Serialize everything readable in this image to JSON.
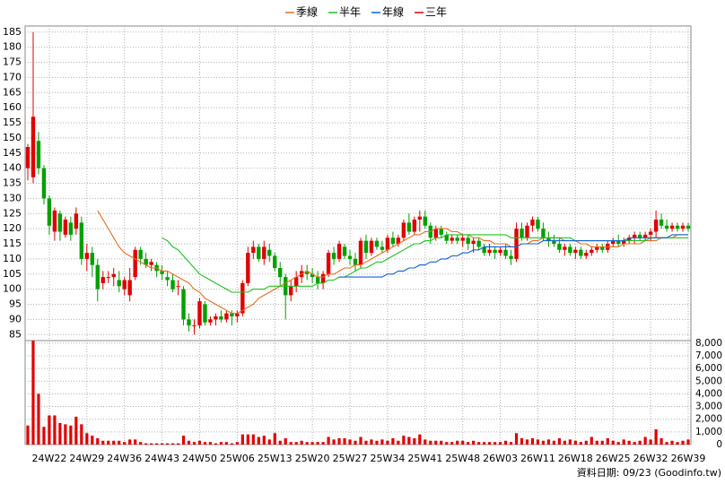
{
  "chart_data": {
    "type": "candlestick",
    "categories": [
      null,
      null,
      null,
      null,
      "24W22",
      null,
      null,
      null,
      null,
      null,
      null,
      "24W29",
      null,
      null,
      null,
      null,
      null,
      null,
      "24W36",
      null,
      null,
      null,
      null,
      null,
      null,
      "24W43",
      null,
      null,
      null,
      null,
      null,
      null,
      "24W50",
      null,
      null,
      null,
      null,
      null,
      null,
      "25W06",
      null,
      null,
      null,
      null,
      null,
      null,
      "25W13",
      null,
      null,
      null,
      null,
      null,
      null,
      "25W20",
      null,
      null,
      null,
      null,
      null,
      null,
      "25W27",
      null,
      null,
      null,
      null,
      null,
      null,
      "25W34",
      null,
      null,
      null,
      null,
      null,
      null,
      "25W41",
      null,
      null,
      null,
      null,
      null,
      null,
      "25W48",
      null,
      null,
      null,
      null,
      null,
      null,
      "26W03",
      null,
      null,
      null,
      null,
      null,
      null,
      "26W11",
      null,
      null,
      null,
      null,
      null,
      null,
      "26W18",
      null,
      null,
      null,
      null,
      null,
      null,
      "26W25",
      null,
      null,
      null,
      null,
      null,
      null,
      "26W32",
      null,
      null,
      null,
      null,
      null,
      null,
      "26W39"
    ],
    "open": [
      140,
      137,
      149,
      140,
      130,
      119,
      125,
      118,
      122,
      120,
      122,
      110,
      112,
      108,
      102,
      104,
      104,
      103,
      100,
      98,
      104,
      113,
      110,
      108,
      108,
      106,
      104,
      103,
      101,
      100,
      90,
      88,
      88,
      95,
      89,
      90,
      91,
      90,
      92,
      91,
      92,
      102,
      112,
      114,
      110,
      113,
      111,
      107,
      104,
      98,
      101,
      104,
      106,
      105,
      104,
      102,
      105,
      112,
      110,
      114,
      111,
      110,
      108,
      116,
      112,
      116,
      114,
      113,
      117,
      115,
      117,
      122,
      119,
      123,
      124,
      121,
      117,
      120,
      118,
      116,
      117,
      116,
      117,
      115,
      116,
      114,
      112,
      113,
      112,
      113,
      111,
      110,
      120,
      117,
      121,
      123,
      120,
      117,
      116,
      115,
      113,
      114,
      112,
      113,
      111,
      112,
      113,
      114,
      113,
      115,
      116,
      115,
      116,
      117,
      118,
      117,
      118,
      119,
      123,
      121,
      120,
      121,
      120,
      121
    ],
    "high": [
      148,
      185,
      152,
      141,
      131,
      127,
      126,
      124,
      124,
      127,
      124,
      115,
      114,
      110,
      106,
      106,
      107,
      106,
      104,
      107,
      114,
      114,
      112,
      110,
      109,
      108,
      106,
      105,
      103,
      101,
      92,
      90,
      97,
      96,
      91,
      92,
      93,
      93,
      93,
      93,
      103,
      114,
      116,
      115,
      116,
      115,
      112,
      109,
      105,
      103,
      106,
      108,
      108,
      107,
      106,
      106,
      113,
      114,
      116,
      115,
      113,
      112,
      117,
      118,
      117,
      117,
      116,
      118,
      119,
      118,
      123,
      125,
      124,
      126,
      126,
      122,
      121,
      121,
      119,
      118,
      118,
      118,
      118,
      117,
      117,
      115,
      115,
      114,
      114,
      115,
      113,
      122,
      122,
      122,
      124,
      124,
      122,
      119,
      118,
      117,
      115,
      115,
      114,
      114,
      113,
      114,
      115,
      115,
      116,
      117,
      118,
      117,
      118,
      119,
      119,
      119,
      120,
      126,
      125,
      123,
      122,
      122,
      122,
      122
    ],
    "low": [
      136,
      135,
      138,
      128,
      118,
      116,
      116,
      117,
      116,
      118,
      108,
      106,
      104,
      96,
      100,
      102,
      101,
      99,
      98,
      96,
      103,
      108,
      107,
      106,
      104,
      103,
      101,
      99,
      98,
      88,
      86,
      85,
      87,
      88,
      88,
      88,
      89,
      89,
      88,
      89,
      91,
      101,
      110,
      109,
      108,
      109,
      106,
      101,
      90,
      96,
      99,
      102,
      103,
      102,
      100,
      100,
      104,
      108,
      109,
      110,
      108,
      106,
      107,
      110,
      111,
      113,
      112,
      112,
      114,
      114,
      116,
      118,
      118,
      119,
      120,
      115,
      116,
      117,
      115,
      115,
      115,
      114,
      113,
      112,
      113,
      111,
      111,
      110,
      111,
      110,
      108,
      109,
      116,
      116,
      119,
      119,
      116,
      114,
      114,
      112,
      111,
      111,
      110,
      110,
      110,
      111,
      112,
      112,
      112,
      114,
      114,
      114,
      115,
      115,
      116,
      116,
      116,
      117,
      120,
      119,
      119,
      119,
      119,
      119
    ],
    "close": [
      147,
      157,
      140,
      130,
      121,
      126,
      119,
      123,
      118,
      125,
      110,
      112,
      108,
      100,
      104,
      104,
      105,
      101,
      103,
      103,
      113,
      110,
      108,
      109,
      106,
      105,
      103,
      100,
      101,
      90,
      88,
      88,
      96,
      89,
      90,
      91,
      90,
      92,
      91,
      92,
      102,
      112,
      114,
      110,
      114,
      111,
      107,
      104,
      98,
      101,
      104,
      106,
      105,
      104,
      102,
      105,
      112,
      110,
      115,
      111,
      110,
      108,
      116,
      112,
      116,
      114,
      113,
      117,
      115,
      117,
      122,
      119,
      123,
      124,
      121,
      117,
      120,
      118,
      116,
      117,
      116,
      117,
      115,
      116,
      114,
      112,
      113,
      112,
      113,
      111,
      110,
      120,
      117,
      121,
      123,
      120,
      117,
      116,
      115,
      113,
      114,
      112,
      113,
      111,
      112,
      113,
      114,
      113,
      115,
      116,
      115,
      116,
      117,
      118,
      117,
      118,
      119,
      123,
      121,
      120,
      121,
      120,
      121,
      120
    ],
    "up_color": "#e00000",
    "down_color": "#00a000",
    "ylim": [
      83,
      187
    ],
    "yticks": [
      85,
      90,
      95,
      100,
      105,
      110,
      115,
      120,
      125,
      130,
      135,
      140,
      145,
      150,
      155,
      160,
      165,
      170,
      175,
      180,
      185
    ],
    "grid": true,
    "series": [
      {
        "name": "季線",
        "color": "#e07020",
        "values": [
          null,
          null,
          null,
          null,
          null,
          null,
          null,
          null,
          null,
          null,
          null,
          null,
          null,
          126,
          123,
          120,
          117,
          114,
          112,
          111,
          110,
          109,
          108,
          107,
          107,
          106,
          106,
          105,
          104,
          103,
          102,
          100,
          99,
          97,
          96,
          95,
          94,
          93,
          92,
          92,
          93,
          94,
          95,
          97,
          98,
          99,
          100,
          101,
          102,
          103,
          104,
          105,
          106,
          105,
          104,
          104,
          105,
          105,
          106,
          107,
          107,
          108,
          108,
          109,
          110,
          111,
          112,
          113,
          114,
          115,
          116,
          117,
          118,
          118,
          119,
          119,
          120,
          120,
          120,
          119,
          119,
          118,
          118,
          117,
          117,
          116,
          116,
          115,
          115,
          115,
          114,
          114,
          115,
          115,
          116,
          116,
          117,
          117,
          117,
          117,
          116,
          116,
          116,
          115,
          115,
          114,
          114,
          114,
          114,
          114,
          114,
          115,
          115,
          115,
          115,
          116,
          116,
          116,
          117,
          117,
          117,
          118,
          118,
          118
        ]
      },
      {
        "name": "半年",
        "color": "#20c020",
        "values": [
          null,
          null,
          null,
          null,
          null,
          null,
          null,
          null,
          null,
          null,
          null,
          null,
          null,
          null,
          null,
          null,
          null,
          null,
          null,
          null,
          null,
          null,
          null,
          null,
          null,
          117,
          116,
          114,
          113,
          111,
          109,
          107,
          105,
          104,
          103,
          102,
          101,
          100,
          99,
          99,
          99,
          99,
          100,
          100,
          100,
          101,
          101,
          101,
          101,
          101,
          101,
          101,
          101,
          101,
          102,
          102,
          103,
          103,
          104,
          104,
          105,
          106,
          107,
          107,
          108,
          109,
          109,
          110,
          111,
          112,
          113,
          114,
          115,
          115,
          116,
          116,
          117,
          117,
          118,
          118,
          118,
          118,
          118,
          118,
          118,
          118,
          118,
          118,
          118,
          118,
          117,
          117,
          117,
          117,
          117,
          117,
          117,
          117,
          117,
          117,
          117,
          117,
          116,
          116,
          116,
          116,
          116,
          116,
          116,
          116,
          116,
          116,
          116,
          116,
          116,
          116,
          117,
          117,
          117,
          117,
          117,
          117,
          117,
          117
        ]
      },
      {
        "name": "年線",
        "color": "#1060d0",
        "values": [
          null,
          null,
          null,
          null,
          null,
          null,
          null,
          null,
          null,
          null,
          null,
          null,
          null,
          null,
          null,
          null,
          null,
          null,
          null,
          null,
          null,
          null,
          null,
          null,
          null,
          null,
          null,
          null,
          null,
          null,
          null,
          null,
          null,
          null,
          null,
          null,
          null,
          null,
          null,
          null,
          null,
          null,
          null,
          null,
          null,
          null,
          null,
          null,
          null,
          null,
          null,
          null,
          null,
          null,
          null,
          null,
          null,
          null,
          104,
          104,
          104,
          104,
          104,
          104,
          104,
          104,
          104,
          105,
          105,
          106,
          106,
          107,
          107,
          108,
          108,
          109,
          109,
          110,
          110,
          111,
          111,
          112,
          112,
          113,
          113,
          114,
          114,
          114,
          114,
          114,
          114,
          114,
          115,
          115,
          115,
          115,
          116,
          116,
          116,
          116,
          116,
          116,
          116,
          116,
          116,
          116,
          116,
          116,
          116,
          116,
          116,
          116,
          117,
          117,
          117,
          117,
          117,
          117,
          117,
          117,
          118,
          118,
          118,
          118
        ]
      },
      {
        "name": "三年",
        "color": "#e00000"
      }
    ],
    "volume": {
      "color": "#e00000",
      "values": [
        1500,
        8200,
        4000,
        1400,
        2300,
        2300,
        1700,
        1600,
        1500,
        2200,
        1600,
        900,
        700,
        500,
        300,
        300,
        300,
        300,
        200,
        400,
        400,
        200,
        100,
        100,
        100,
        100,
        100,
        100,
        100,
        700,
        300,
        200,
        300,
        200,
        200,
        100,
        200,
        200,
        100,
        200,
        800,
        800,
        800,
        600,
        700,
        400,
        900,
        300,
        500,
        200,
        200,
        300,
        200,
        200,
        200,
        200,
        600,
        400,
        500,
        500,
        400,
        300,
        600,
        300,
        400,
        300,
        400,
        300,
        500,
        300,
        700,
        600,
        500,
        800,
        400,
        300,
        300,
        300,
        200,
        200,
        300,
        300,
        200,
        300,
        200,
        200,
        200,
        200,
        200,
        300,
        200,
        900,
        500,
        400,
        500,
        400,
        300,
        400,
        300,
        500,
        300,
        400,
        300,
        200,
        300,
        600,
        300,
        300,
        500,
        300,
        200,
        400,
        300,
        200,
        300,
        600,
        400,
        1200,
        500,
        200,
        300,
        200,
        300,
        400
      ],
      "ylim": [
        0,
        8200
      ],
      "yticks": [
        0,
        {
          "value": 1000,
          "label": "1,000"
        },
        {
          "value": 2000,
          "label": "2,000"
        },
        {
          "value": 3000,
          "label": "3,000"
        },
        {
          "value": 4000,
          "label": "4,000"
        },
        {
          "value": 5000,
          "label": "5,000"
        },
        {
          "value": 6000,
          "label": "6,000"
        },
        {
          "value": 7000,
          "label": "7,000"
        },
        {
          "value": 8000,
          "label": "8,000"
        }
      ]
    },
    "note": "資料日期: 09/23 (Goodinfo.tw)"
  }
}
